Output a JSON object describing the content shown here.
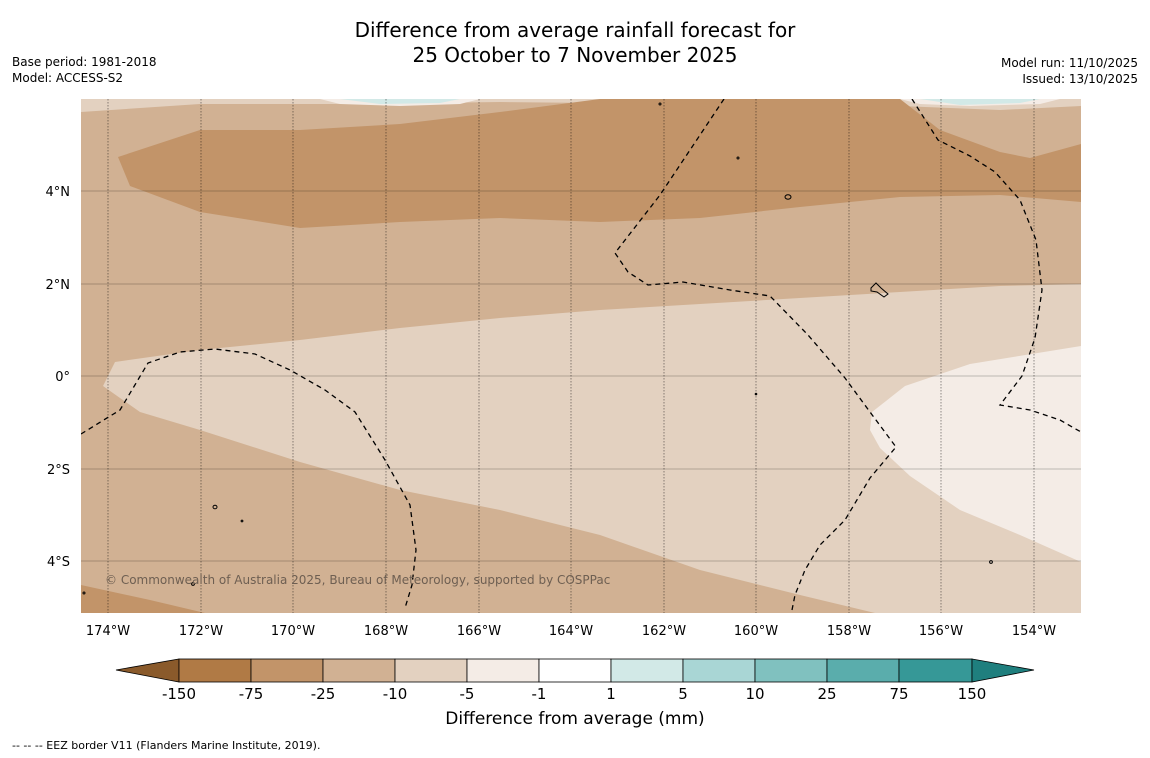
{
  "title": {
    "line1": "Difference from average rainfall forecast for",
    "line2": "25 October to 7 November 2025"
  },
  "meta_left": {
    "base_period": "Base period: 1981-2018",
    "model": "Model: ACCESS-S2"
  },
  "meta_right": {
    "model_run": "Model run: 11/10/2025",
    "issued": "Issued: 13/10/2025"
  },
  "map": {
    "lat_labels": [
      "4°N",
      "2°N",
      "0°",
      "2°S",
      "4°S"
    ],
    "lon_labels": [
      "174°W",
      "172°W",
      "170°W",
      "168°W",
      "166°W",
      "164°W",
      "162°W",
      "160°W",
      "158°W",
      "156°W",
      "154°W"
    ],
    "copyright": "© Commonwealth of Australia 2025, Bureau of Meteorology, supported by COSPPac"
  },
  "colorbar": {
    "title": "Difference from average (mm)",
    "tick_labels": [
      "-150",
      "-75",
      "-25",
      "-10",
      "-5",
      "-1",
      "1",
      "5",
      "10",
      "25",
      "75",
      "150"
    ],
    "colors": {
      "below_min": "#8a5a2b",
      "b1": "#b07a45",
      "b2": "#c29469",
      "b3": "#d1b193",
      "b4": "#e3d1c0",
      "b5": "#f4ece6",
      "b6": "#ffffff",
      "b7": "#d2e9e7",
      "b8": "#a9d6d5",
      "b9": "#80c1bf",
      "b10": "#5aadac",
      "b11": "#369897",
      "above_max": "#1f7f7e"
    }
  },
  "footnote": "--  --  -- EEZ border V11 (Flanders Marine Institute, 2019)."
}
